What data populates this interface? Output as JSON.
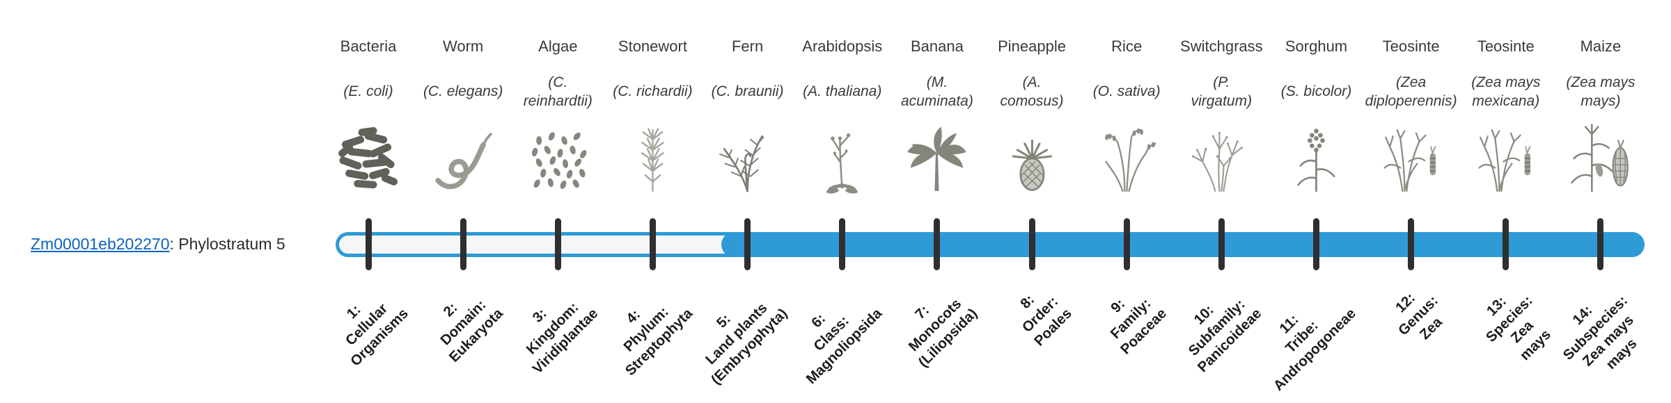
{
  "gene": {
    "id": "Zm00001eb202270",
    "suffix": ": Phylostratum 5",
    "phylostratum": 5
  },
  "colors": {
    "bar": "#2e9bd6",
    "track_fill": "#f5f6f7",
    "tick": "#2f2f2f",
    "link": "#0a62be"
  },
  "phylostrata": [
    {
      "n": 1,
      "organism": "Bacteria",
      "scientific": "(E. coli)",
      "stratum_label": "1:\nCellular\nOrganisms",
      "icon": "bacteria"
    },
    {
      "n": 2,
      "organism": "Worm",
      "scientific": "(C. elegans)",
      "stratum_label": "2:\nDomain:\nEukaryota",
      "icon": "worm"
    },
    {
      "n": 3,
      "organism": "Algae",
      "scientific": "(C.\nreinhardtii)",
      "stratum_label": "3:\nKingdom:\nViridiplantae",
      "icon": "algae"
    },
    {
      "n": 4,
      "organism": "Stonewort",
      "scientific": "(C. richardii)",
      "stratum_label": "4:\nPhylum:\nStreptophyta",
      "icon": "stonewort"
    },
    {
      "n": 5,
      "organism": "Fern",
      "scientific": "(C. braunii)",
      "stratum_label": "5:\nLand plants\n(Embryophyta)",
      "icon": "fern"
    },
    {
      "n": 6,
      "organism": "Arabidopsis",
      "scientific": "(A. thaliana)",
      "stratum_label": "6:\nClass:\nMagnoliopsida",
      "icon": "arabidopsis"
    },
    {
      "n": 7,
      "organism": "Banana",
      "scientific": "(M.\nacuminata)",
      "stratum_label": "7:\nMonocots\n(Liliopsida)",
      "icon": "banana"
    },
    {
      "n": 8,
      "organism": "Pineapple",
      "scientific": "(A.\ncomosus)",
      "stratum_label": "8:\nOrder:\nPoales",
      "icon": "pineapple"
    },
    {
      "n": 9,
      "organism": "Rice",
      "scientific": "(O. sativa)",
      "stratum_label": "9:\nFamily:\nPoaceae",
      "icon": "rice"
    },
    {
      "n": 10,
      "organism": "Switchgrass",
      "scientific": "(P.\nvirgatum)",
      "stratum_label": "10:\nSubfamily:\nPanicoideae",
      "icon": "switchgrass"
    },
    {
      "n": 11,
      "organism": "Sorghum",
      "scientific": "(S. bicolor)",
      "stratum_label": "11:\nTribe:\nAndropogoneae",
      "icon": "sorghum"
    },
    {
      "n": 12,
      "organism": "Teosinte",
      "scientific": "(Zea\ndiploperennis)",
      "stratum_label": "12:\nGenus:\nZea",
      "icon": "teosinte"
    },
    {
      "n": 13,
      "organism": "Teosinte",
      "scientific": "(Zea mays\nmexicana)",
      "stratum_label": "13:\nSpecies:\nZea\nmays",
      "icon": "teosinte"
    },
    {
      "n": 14,
      "organism": "Maize",
      "scientific": "(Zea mays\nmays)",
      "stratum_label": "14:\nSubspecies:\nZea mays\nmays",
      "icon": "maize"
    }
  ]
}
